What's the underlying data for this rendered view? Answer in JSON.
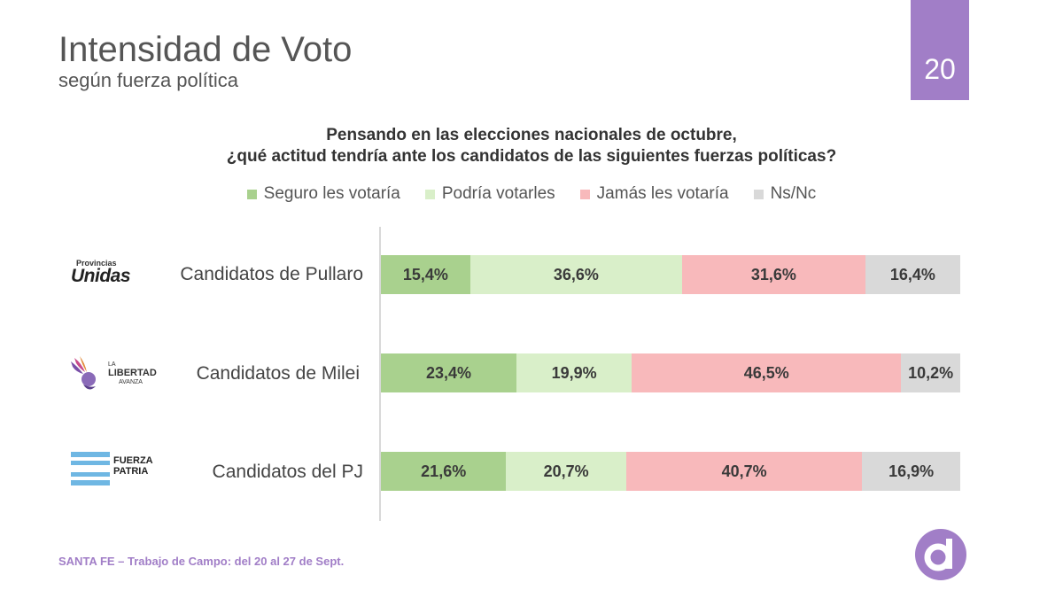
{
  "header": {
    "title": "Intensidad de Voto",
    "subtitle": "según fuerza política",
    "page_number": "20"
  },
  "question": {
    "line1": "Pensando en las elecciones nacionales de octubre,",
    "line2": "¿qué actitud tendría ante los candidatos de las siguientes fuerzas políticas?"
  },
  "footer": "SANTA FE – Trabajo de Campo: del 20 al 27 de Sept.",
  "logos": {
    "pullaro_small": "Provincias",
    "pullaro_big": "Unidas",
    "milei_1": "LA",
    "milei_2": "LIBERTAD",
    "milei_3": "AVANZA",
    "pj_1": "FUERZA",
    "pj_2": "PATRIA"
  },
  "colors": {
    "seguro": "#a9d18e",
    "podria": "#d9efc9",
    "jamas": "#f8b9bb",
    "nsnc": "#d9d9d9",
    "accent": "#a17ec7"
  },
  "chart_data": {
    "type": "bar",
    "stacked": true,
    "orientation": "horizontal",
    "categories": [
      "Candidatos de Pullaro",
      "Candidatos de Milei",
      "Candidatos del PJ"
    ],
    "series": [
      {
        "name": "Seguro les votaría",
        "values": [
          15.4,
          23.4,
          21.6
        ],
        "labels": [
          "15,4%",
          "23,4%",
          "21,6%"
        ]
      },
      {
        "name": "Podría votarles",
        "values": [
          36.6,
          19.9,
          20.7
        ],
        "labels": [
          "36,6%",
          "19,9%",
          "20,7%"
        ]
      },
      {
        "name": "Jamás les votaría",
        "values": [
          31.6,
          46.5,
          40.7
        ],
        "labels": [
          "31,6%",
          "46,5%",
          "40,7%"
        ]
      },
      {
        "name": "Ns/Nc",
        "values": [
          16.4,
          10.2,
          16.9
        ],
        "labels": [
          "16,4%",
          "10,2%",
          "16,9%"
        ]
      }
    ],
    "xlim": [
      0,
      100
    ],
    "legend": "top-center"
  }
}
